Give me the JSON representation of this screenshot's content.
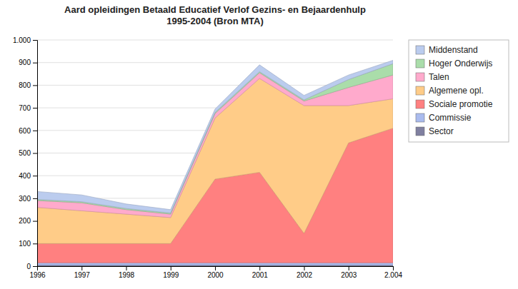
{
  "chart_data": {
    "type": "area",
    "stacked": true,
    "title": "Aard opleidingen Betaald Educatief Verlof Gezins- en Bejaardenhulp\n1995-2004 (Bron MTA)",
    "categories": [
      "1996",
      "1997",
      "1998",
      "1999",
      "2000",
      "2001",
      "2002",
      "2003",
      "2.004"
    ],
    "series": [
      {
        "name": "Sector",
        "color": "#8080a0",
        "values": [
          5,
          5,
          5,
          5,
          5,
          5,
          5,
          5,
          5
        ]
      },
      {
        "name": "Commissie",
        "color": "#aabbee",
        "values": [
          10,
          10,
          10,
          10,
          10,
          10,
          10,
          10,
          10
        ]
      },
      {
        "name": "Sociale promotie",
        "color": "#ff8080",
        "values": [
          85,
          85,
          85,
          85,
          370,
          400,
          130,
          530,
          595
        ]
      },
      {
        "name": "Algemene opl.",
        "color": "#ffcc88",
        "values": [
          160,
          145,
          130,
          115,
          270,
          415,
          565,
          165,
          130
        ]
      },
      {
        "name": "Talen",
        "color": "#ffaacc",
        "values": [
          30,
          35,
          20,
          15,
          20,
          25,
          20,
          80,
          105
        ]
      },
      {
        "name": "Hoger Onderwijs",
        "color": "#aaddaa",
        "values": [
          5,
          5,
          5,
          5,
          5,
          5,
          5,
          35,
          50
        ]
      },
      {
        "name": "Middenstand",
        "color": "#bbccee",
        "values": [
          35,
          30,
          20,
          15,
          15,
          30,
          20,
          20,
          15
        ]
      }
    ],
    "ylim": [
      0,
      1000
    ],
    "yticks": [
      0,
      100,
      200,
      300,
      400,
      500,
      600,
      700,
      800,
      900,
      {
        "value": 1000,
        "label": "1.000"
      }
    ],
    "grid": true,
    "legend": "right"
  }
}
